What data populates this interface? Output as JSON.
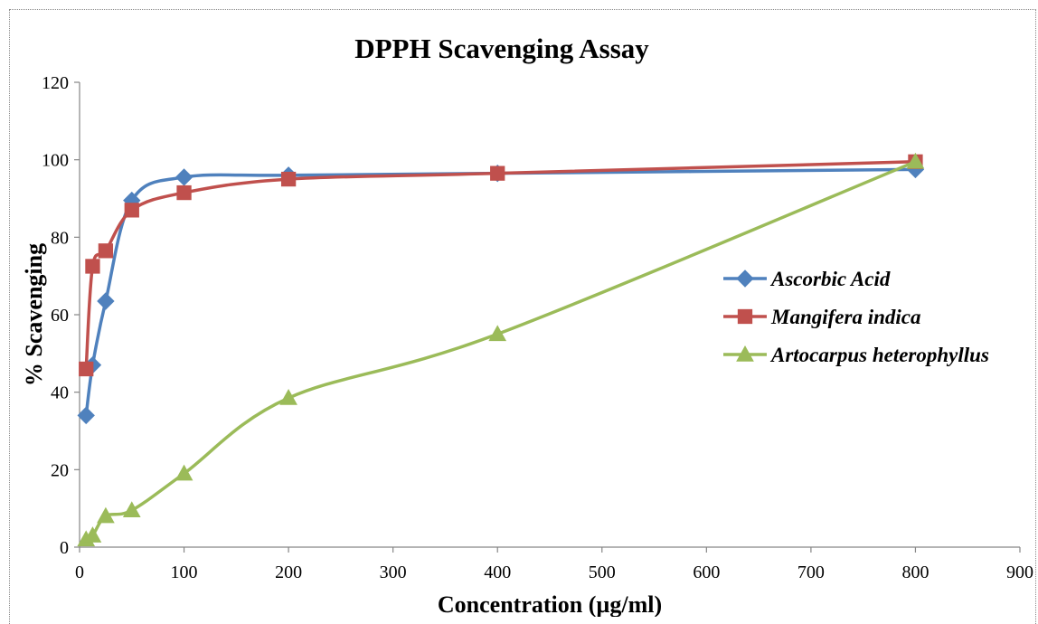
{
  "chart_data": {
    "type": "line",
    "title": "DPPH Scavenging Assay",
    "xlabel": "Concentration (µg/ml)",
    "ylabel": "% Scavenging",
    "xlim": [
      0,
      900
    ],
    "ylim": [
      0,
      120
    ],
    "x_ticks": [
      0,
      100,
      200,
      300,
      400,
      500,
      600,
      700,
      800,
      900
    ],
    "y_ticks": [
      0,
      20,
      40,
      60,
      80,
      100,
      120
    ],
    "grid": false,
    "legend_position": "right",
    "smooth": true,
    "series": [
      {
        "name": "Ascorbic Acid",
        "color": "#4f81bd",
        "marker": "diamond",
        "x": [
          6.25,
          12.5,
          25,
          50,
          100,
          200,
          400,
          800
        ],
        "y": [
          34,
          47,
          63.5,
          89.5,
          95.5,
          96,
          96.5,
          97.5
        ]
      },
      {
        "name": "Mangifera indica",
        "color": "#c0504d",
        "marker": "square",
        "x": [
          6.25,
          12.5,
          25,
          50,
          100,
          200,
          400,
          800
        ],
        "y": [
          46,
          72.5,
          76.5,
          87,
          91.5,
          95,
          96.5,
          99.5
        ]
      },
      {
        "name": "Artocarpus heterophyllus",
        "color": "#9bbb59",
        "marker": "triangle",
        "x": [
          6.25,
          12.5,
          25,
          50,
          100,
          200,
          400,
          800
        ],
        "y": [
          2,
          3,
          8,
          9.5,
          19,
          38.5,
          55,
          99.5
        ]
      }
    ]
  }
}
